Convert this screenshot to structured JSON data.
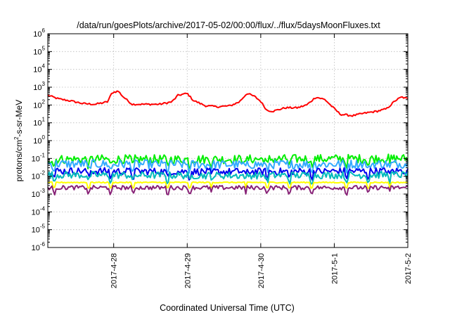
{
  "chart_data": {
    "type": "line",
    "title": "/data/run/goesPlots/archive/2017-05-02/00:00/flux/../flux/5daysMoonFluxes.txt",
    "xlabel": "Coordinated Universal Time (UTC)",
    "ylabel": "protons/cm2-s-sr-MeV",
    "ylabel_parts": {
      "main": "protons/cm",
      "sup": "2",
      "rest": "-s-sr-MeV"
    },
    "y_scale": "log",
    "ylim_exponents": [
      -6,
      6
    ],
    "y_ticks": [
      {
        "base": "10",
        "exp": "-6"
      },
      {
        "base": "10",
        "exp": "-5"
      },
      {
        "base": "10",
        "exp": "-4"
      },
      {
        "base": "10",
        "exp": "-3"
      },
      {
        "base": "10",
        "exp": "-2"
      },
      {
        "base": "10",
        "exp": "-1"
      },
      {
        "base": "10",
        "exp": "0"
      },
      {
        "base": "10",
        "exp": "1"
      },
      {
        "base": "10",
        "exp": "2"
      },
      {
        "base": "10",
        "exp": "3"
      },
      {
        "base": "10",
        "exp": "4"
      },
      {
        "base": "10",
        "exp": "5"
      },
      {
        "base": "10",
        "exp": "6"
      }
    ],
    "xlim": [
      "2017-04-27 02:30",
      "2017-05-02 00:00"
    ],
    "x_ticks": [
      {
        "label": "2017-4-28",
        "value": "2017-04-28 00:00"
      },
      {
        "label": "2017-4-29",
        "value": "2017-04-29 00:00"
      },
      {
        "label": "2017-4-30",
        "value": "2017-04-30 00:00"
      },
      {
        "label": "2017-5-1",
        "value": "2017-05-01 00:00"
      },
      {
        "label": "2017-5-2",
        "value": "2017-05-02 00:00"
      }
    ],
    "grid": true,
    "series": [
      {
        "color": "#ff0000",
        "dips": false,
        "noise": 0.05,
        "points": [
          [
            "2017-04-27 02:30",
            350
          ],
          [
            "2017-04-27 06:00",
            220
          ],
          [
            "2017-04-27 10:00",
            170
          ],
          [
            "2017-04-27 14:00",
            120
          ],
          [
            "2017-04-27 18:00",
            110
          ],
          [
            "2017-04-27 22:00",
            150
          ],
          [
            "2017-04-27 23:30",
            500
          ],
          [
            "2017-04-28 01:30",
            600
          ],
          [
            "2017-04-28 03:00",
            300
          ],
          [
            "2017-04-28 06:00",
            110
          ],
          [
            "2017-04-28 10:00",
            110
          ],
          [
            "2017-04-28 15:00",
            110
          ],
          [
            "2017-04-28 19:00",
            150
          ],
          [
            "2017-04-28 21:00",
            350
          ],
          [
            "2017-04-29 00:00",
            450
          ],
          [
            "2017-04-29 02:00",
            180
          ],
          [
            "2017-04-29 06:00",
            90
          ],
          [
            "2017-04-29 10:00",
            80
          ],
          [
            "2017-04-29 14:00",
            90
          ],
          [
            "2017-04-29 17:00",
            150
          ],
          [
            "2017-04-29 19:30",
            450
          ],
          [
            "2017-04-29 22:00",
            300
          ],
          [
            "2017-04-30 00:00",
            160
          ],
          [
            "2017-04-30 02:00",
            50
          ],
          [
            "2017-04-30 04:00",
            45
          ],
          [
            "2017-04-30 08:00",
            70
          ],
          [
            "2017-04-30 12:00",
            70
          ],
          [
            "2017-04-30 15:00",
            100
          ],
          [
            "2017-04-30 18:00",
            280
          ],
          [
            "2017-04-30 21:00",
            200
          ],
          [
            "2017-04-30 23:00",
            90
          ],
          [
            "2017-05-01 02:00",
            30
          ],
          [
            "2017-05-01 06:00",
            25
          ],
          [
            "2017-05-01 10:00",
            35
          ],
          [
            "2017-05-01 14:00",
            45
          ],
          [
            "2017-05-01 17:00",
            60
          ],
          [
            "2017-05-01 20:00",
            180
          ],
          [
            "2017-05-01 22:00",
            280
          ],
          [
            "2017-05-02 00:00",
            220
          ]
        ]
      },
      {
        "color": "#00ee00",
        "dips": true,
        "noise": 0.25,
        "points": [
          [
            "2017-04-27 02:30",
            0.09
          ],
          [
            "2017-04-29 12:00",
            0.09
          ],
          [
            "2017-05-02 00:00",
            0.1
          ]
        ]
      },
      {
        "color": "#33aaff",
        "dips": true,
        "noise": 0.25,
        "points": [
          [
            "2017-04-27 02:30",
            0.05
          ],
          [
            "2017-04-29 12:00",
            0.045
          ],
          [
            "2017-05-02 00:00",
            0.05
          ]
        ]
      },
      {
        "color": "#0000ee",
        "dips": true,
        "noise": 0.2,
        "points": [
          [
            "2017-04-27 02:30",
            0.02
          ],
          [
            "2017-04-29 12:00",
            0.018
          ],
          [
            "2017-05-02 00:00",
            0.02
          ]
        ]
      },
      {
        "color": "#00bbbb",
        "dips": true,
        "noise": 0.2,
        "points": [
          [
            "2017-04-27 02:30",
            0.012
          ],
          [
            "2017-04-29 12:00",
            0.011
          ],
          [
            "2017-05-02 00:00",
            0.012
          ]
        ]
      },
      {
        "color": "#ffff00",
        "dips": true,
        "noise": 0.03,
        "points": [
          [
            "2017-04-27 02:30",
            0.0045
          ],
          [
            "2017-05-02 00:00",
            0.0045
          ]
        ]
      },
      {
        "color": "#882277",
        "dips": true,
        "noise": 0.12,
        "points": [
          [
            "2017-04-27 02:30",
            0.0023
          ],
          [
            "2017-05-02 00:00",
            0.0023
          ]
        ]
      }
    ]
  }
}
